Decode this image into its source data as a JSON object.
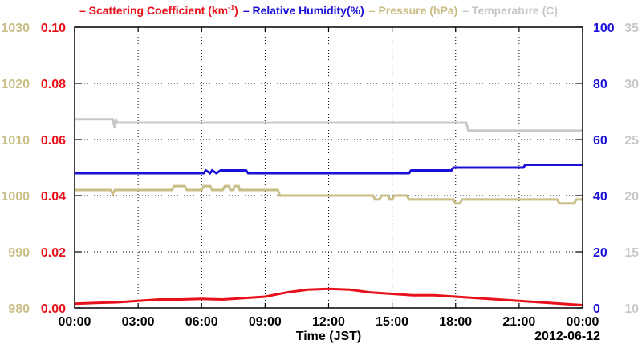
{
  "legend": [
    {
      "text": "– Scattering Coefficient (km",
      "sup": "-1",
      "tail": ")",
      "color": "#e8101a"
    },
    {
      "text": "– Relative Humidity(%)",
      "color": "#1a10d8"
    },
    {
      "text": "– Pressure (hPa)",
      "color": "#c9bf86"
    },
    {
      "text": "– Temperature (C)",
      "color": "#c8c8c8"
    }
  ],
  "chart_data": {
    "type": "line",
    "title": "",
    "xlabel": "Time (JST)",
    "date_label": "2012-06-12",
    "x_ticks": [
      "00:00",
      "03:00",
      "06:00",
      "09:00",
      "12:00",
      "15:00",
      "18:00",
      "21:00",
      "00:00"
    ],
    "xlim_hours": [
      0,
      24
    ],
    "grid": true,
    "axes": {
      "scattering": {
        "min": 0,
        "max": 0.1,
        "ticks": [
          "0.00",
          "0.02",
          "0.04",
          "0.06",
          "0.08",
          "0.10"
        ],
        "color": "#e8101a",
        "side": "left-inner"
      },
      "pressure": {
        "min": 980,
        "max": 1030,
        "ticks": [
          "980",
          "990",
          "1000",
          "1010",
          "1020",
          "1030"
        ],
        "color": "#c9bf86",
        "side": "left-outer"
      },
      "humidity": {
        "min": 0,
        "max": 100,
        "ticks": [
          "0",
          "20",
          "40",
          "60",
          "80",
          "100"
        ],
        "color": "#1a10d8",
        "side": "right-inner"
      },
      "temperature": {
        "min": 10,
        "max": 35,
        "ticks": [
          "10",
          "15",
          "20",
          "25",
          "30",
          "35"
        ],
        "color": "#c8c8c8",
        "side": "right-outer"
      }
    },
    "series": [
      {
        "name": "Temperature (C)",
        "axis": "temperature",
        "color": "#c8c8c8",
        "points": [
          [
            0,
            26.8
          ],
          [
            1.8,
            26.8
          ],
          [
            1.9,
            26.0
          ],
          [
            1.95,
            26.8
          ],
          [
            2.0,
            26.5
          ],
          [
            18.5,
            26.5
          ],
          [
            18.6,
            25.8
          ],
          [
            24,
            25.8
          ]
        ]
      },
      {
        "name": "Relative Humidity(%)",
        "axis": "humidity",
        "color": "#1a10d8",
        "points": [
          [
            0,
            48
          ],
          [
            6.1,
            48
          ],
          [
            6.2,
            49
          ],
          [
            6.4,
            48
          ],
          [
            6.5,
            49
          ],
          [
            6.7,
            48
          ],
          [
            6.9,
            49
          ],
          [
            8.1,
            49
          ],
          [
            8.2,
            48
          ],
          [
            15.8,
            48
          ],
          [
            15.9,
            49
          ],
          [
            17.8,
            49
          ],
          [
            17.9,
            50
          ],
          [
            21.2,
            50
          ],
          [
            21.3,
            51
          ],
          [
            24,
            51
          ]
        ]
      },
      {
        "name": "Pressure (hPa)",
        "axis": "pressure",
        "color": "#c9bf86",
        "points": [
          [
            0,
            1001
          ],
          [
            1.7,
            1001
          ],
          [
            1.8,
            1000.3
          ],
          [
            1.9,
            1001
          ],
          [
            4.6,
            1001
          ],
          [
            4.7,
            1001.7
          ],
          [
            5.2,
            1001.7
          ],
          [
            5.3,
            1001
          ],
          [
            6.0,
            1001
          ],
          [
            6.1,
            1001.7
          ],
          [
            6.4,
            1001.7
          ],
          [
            6.5,
            1001
          ],
          [
            7.0,
            1001
          ],
          [
            7.1,
            1001.7
          ],
          [
            7.3,
            1001.7
          ],
          [
            7.35,
            1001
          ],
          [
            7.5,
            1001
          ],
          [
            7.55,
            1001.7
          ],
          [
            7.75,
            1001.7
          ],
          [
            7.8,
            1001
          ],
          [
            9.6,
            1001
          ],
          [
            9.7,
            1000
          ],
          [
            14.1,
            1000
          ],
          [
            14.2,
            999.3
          ],
          [
            14.4,
            999.3
          ],
          [
            14.5,
            1000
          ],
          [
            14.8,
            1000
          ],
          [
            14.9,
            999.3
          ],
          [
            15.0,
            999.3
          ],
          [
            15.1,
            1000
          ],
          [
            15.7,
            1000
          ],
          [
            15.8,
            999.3
          ],
          [
            17.9,
            999.3
          ],
          [
            18.0,
            998.6
          ],
          [
            18.2,
            998.6
          ],
          [
            18.3,
            999.3
          ],
          [
            22.8,
            999.3
          ],
          [
            22.9,
            998.6
          ],
          [
            23.6,
            998.6
          ],
          [
            23.7,
            999.3
          ],
          [
            24,
            999.3
          ]
        ]
      },
      {
        "name": "Scattering Coefficient (km-1)",
        "axis": "scattering",
        "color": "#e8101a",
        "points": [
          [
            0,
            0.0015
          ],
          [
            1,
            0.0018
          ],
          [
            2,
            0.002
          ],
          [
            3,
            0.0025
          ],
          [
            4,
            0.003
          ],
          [
            5,
            0.003
          ],
          [
            6,
            0.0032
          ],
          [
            7,
            0.003
          ],
          [
            8,
            0.0035
          ],
          [
            9,
            0.004
          ],
          [
            10,
            0.0055
          ],
          [
            11,
            0.0065
          ],
          [
            12,
            0.0068
          ],
          [
            13,
            0.0065
          ],
          [
            14,
            0.0055
          ],
          [
            15,
            0.005
          ],
          [
            16,
            0.0045
          ],
          [
            17,
            0.0045
          ],
          [
            18,
            0.004
          ],
          [
            19,
            0.0035
          ],
          [
            20,
            0.003
          ],
          [
            21,
            0.0025
          ],
          [
            22,
            0.002
          ],
          [
            23,
            0.0015
          ],
          [
            24,
            0.001
          ]
        ]
      }
    ]
  }
}
